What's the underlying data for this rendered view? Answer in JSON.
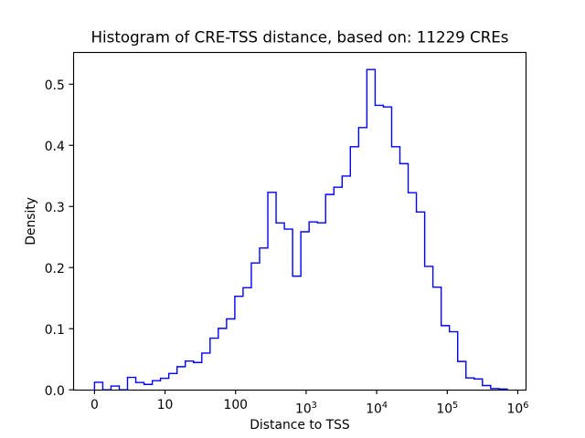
{
  "figure": {
    "background": "#ffffff"
  },
  "chart_data": {
    "type": "bar",
    "subtype": "histogram-step-outline",
    "title": "Histogram of CRE-TSS distance, based on: 11229 CREs",
    "xlabel": "Distance to TSS",
    "ylabel": "Density",
    "n_samples_label": "11229 CREs",
    "line_color": "#0000ff",
    "axes_color": "#000000",
    "x_scale": "symlog (linear from 0 to 10, then logarithmic; the 0-10 span is as wide as one decade)",
    "grid": false,
    "legend": false,
    "x_ticks": [
      {
        "label": "0",
        "value": 0
      },
      {
        "label": "10",
        "value": 10
      },
      {
        "label": "100",
        "value": 100
      },
      {
        "label": "10",
        "sup": "3",
        "value": 1000
      },
      {
        "label": "10",
        "sup": "4",
        "value": 10000
      },
      {
        "label": "10",
        "sup": "5",
        "value": 100000
      },
      {
        "label": "10",
        "sup": "6",
        "value": 1000000
      }
    ],
    "y_ticks": [
      {
        "label": "0.0",
        "value": 0.0
      },
      {
        "label": "0.1",
        "value": 0.1
      },
      {
        "label": "0.2",
        "value": 0.2
      },
      {
        "label": "0.3",
        "value": 0.3
      },
      {
        "label": "0.4",
        "value": 0.4
      },
      {
        "label": "0.5",
        "value": 0.5
      }
    ],
    "xlim": [
      -3.03,
      1329000
    ],
    "ylim": [
      0,
      0.5518
    ],
    "bin_edges": [
      0,
      1.17,
      2.34,
      3.51,
      4.68,
      5.85,
      7.02,
      8.19,
      9.36,
      11.3,
      14.79,
      19.36,
      25.35,
      33.19,
      43.45,
      56.89,
      74.47,
      97.5,
      127.6,
      167.1,
      218.8,
      286.4,
      375.0,
      490.9,
      642.7,
      841.4,
      1102,
      1442,
      1888,
      2472,
      3236,
      4236,
      5546,
      7261,
      9506,
      12445,
      16293,
      21330,
      27925,
      36559,
      47863,
      62662,
      82035,
      107399,
      140605,
      184077,
      240990,
      315500,
      413048,
      540750,
      707946
    ],
    "densities": [
      0.0124,
      0,
      0.0061,
      0,
      0.0203,
      0.0119,
      0.0089,
      0.0149,
      0.0188,
      0.0267,
      0.0378,
      0.0471,
      0.0447,
      0.0601,
      0.0845,
      0.1005,
      0.116,
      0.153,
      0.167,
      0.2075,
      0.232,
      0.323,
      0.273,
      0.263,
      0.186,
      0.2586,
      0.2747,
      0.2732,
      0.3196,
      0.3315,
      0.3497,
      0.3977,
      0.429,
      0.524,
      0.4655,
      0.4628,
      0.3977,
      0.37,
      0.3225,
      0.291,
      0.202,
      0.168,
      0.105,
      0.095,
      0.0464,
      0.0195,
      0.0177,
      0.007,
      0.0021,
      0.0013
    ]
  }
}
